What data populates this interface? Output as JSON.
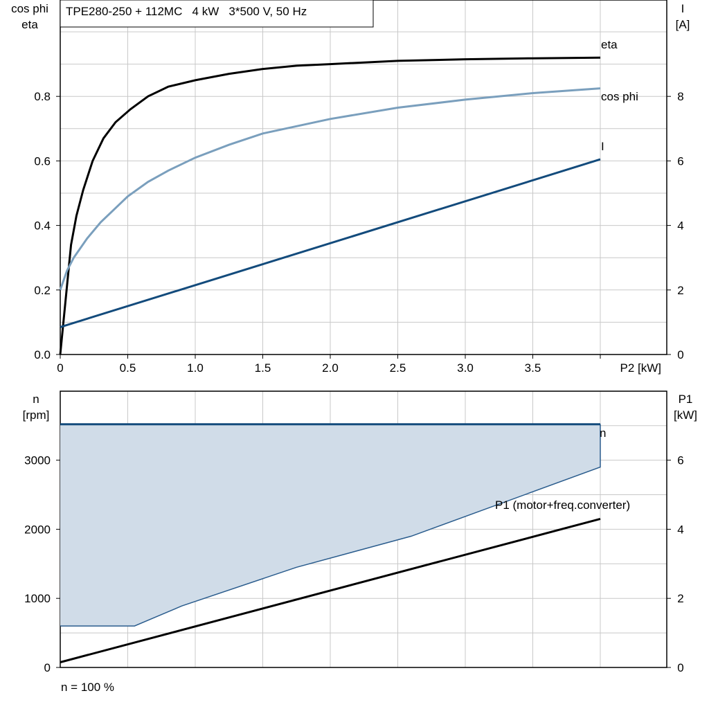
{
  "page_title": "TPE280-250 + 112MC   4 kW   3*500 V, 50 Hz",
  "footer_note": "n = 100 %",
  "colors": {
    "eta": "#000000",
    "cosphi": "#7a9fbd",
    "current": "#134b7c",
    "speed": "#134b7c",
    "p1": "#000000",
    "band_fill": "#d0dce8",
    "band_edge": "#2a5c8d"
  },
  "chart_data": [
    {
      "type": "line",
      "title": "TPE280-250 + 112MC   4 kW   3*500 V, 50 Hz",
      "xlabel": "P2 [kW]",
      "ylabel_left_line1": "cos phi",
      "ylabel_left_line2": "eta",
      "ylabel_right_line1": "I",
      "ylabel_right_line2": "[A]",
      "xlim": [
        0,
        4.0
      ],
      "ylim_left": [
        0,
        1.0
      ],
      "ylim_right": [
        0,
        10
      ],
      "grid": true,
      "x_ticks": [
        "0",
        "0.5",
        "1.0",
        "1.5",
        "2.0",
        "2.5",
        "3.0",
        "3.5"
      ],
      "x_tick_values": [
        0,
        0.5,
        1.0,
        1.5,
        2.0,
        2.5,
        3.0,
        3.5
      ],
      "y_left_ticks": [
        "0.0",
        "0.2",
        "0.4",
        "0.6",
        "0.8"
      ],
      "y_left_tick_values": [
        0,
        0.2,
        0.4,
        0.6,
        0.8
      ],
      "y_right_ticks": [
        "0",
        "2",
        "4",
        "6",
        "8"
      ],
      "y_right_tick_values": [
        0,
        2,
        4,
        6,
        8
      ],
      "series": [
        {
          "name": "eta",
          "axis": "left",
          "x": [
            0,
            0.04,
            0.08,
            0.12,
            0.17,
            0.24,
            0.32,
            0.41,
            0.52,
            0.65,
            0.8,
            1.0,
            1.25,
            1.5,
            1.75,
            2.0,
            2.5,
            3.0,
            3.5,
            4.0
          ],
          "y": [
            0,
            0.17,
            0.34,
            0.43,
            0.51,
            0.6,
            0.67,
            0.72,
            0.76,
            0.8,
            0.83,
            0.85,
            0.87,
            0.885,
            0.895,
            0.9,
            0.91,
            0.915,
            0.918,
            0.92
          ]
        },
        {
          "name": "cos phi",
          "axis": "left",
          "x": [
            0,
            0.05,
            0.1,
            0.2,
            0.3,
            0.4,
            0.5,
            0.65,
            0.8,
            1.0,
            1.25,
            1.5,
            2.0,
            2.5,
            3.0,
            3.5,
            4.0
          ],
          "y": [
            0.2,
            0.26,
            0.3,
            0.36,
            0.41,
            0.45,
            0.49,
            0.535,
            0.57,
            0.61,
            0.65,
            0.685,
            0.73,
            0.765,
            0.79,
            0.81,
            0.825
          ]
        },
        {
          "name": "I",
          "axis": "right",
          "x": [
            0,
            4.0
          ],
          "y": [
            0.85,
            6.05
          ]
        }
      ]
    },
    {
      "type": "area",
      "xlabel": "P2 [kW]",
      "ylabel_left_line1": "n",
      "ylabel_left_line2": "[rpm]",
      "ylabel_right_line1": "P1",
      "ylabel_right_line2": "[kW]",
      "xlim": [
        0,
        4.0
      ],
      "ylim_left": [
        0,
        4000
      ],
      "ylim_right": [
        0,
        8
      ],
      "grid": true,
      "y_left_ticks": [
        "0",
        "1000",
        "2000",
        "3000"
      ],
      "y_left_tick_values": [
        0,
        1000,
        2000,
        3000
      ],
      "y_right_ticks": [
        "0",
        "2",
        "4",
        "6"
      ],
      "y_right_tick_values": [
        0,
        2,
        4,
        6
      ],
      "series": [
        {
          "name": "n",
          "axis": "left",
          "x": [
            0,
            4.0
          ],
          "y": [
            3520,
            3520
          ]
        },
        {
          "axis": "left",
          "role": "range-lower",
          "x": [
            0,
            0.55,
            0.9,
            1.75,
            2.6,
            4.0
          ],
          "y": [
            600,
            600,
            890,
            1450,
            1900,
            2900
          ]
        },
        {
          "name": "P1 (motor+freq.converter)",
          "axis": "right",
          "x": [
            0,
            4.0
          ],
          "y": [
            0.15,
            4.3
          ]
        }
      ]
    }
  ]
}
